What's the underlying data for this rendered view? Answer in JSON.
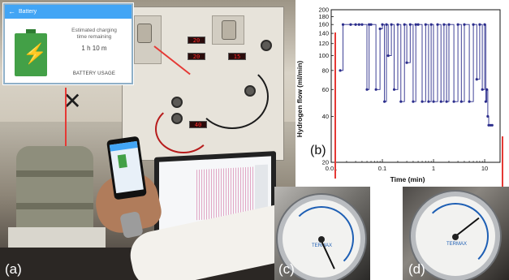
{
  "panel_labels": {
    "a": "(a)",
    "b": "(b)",
    "c": "(c)",
    "d": "(d)"
  },
  "phone_inset": {
    "title": "Battery",
    "estimate_line1": "Estimated charging",
    "estimate_line2": "time remaining",
    "estimate_time": "1 h 10 m",
    "usage": "BATTERY USAGE"
  },
  "rig_displays": [
    "20",
    "20",
    "15",
    "40"
  ],
  "gauge_c": {
    "brand": "TERMAX"
  },
  "gauge_d": {
    "brand": "TERMAX"
  },
  "colors": {
    "series": "#2b2d8c",
    "arrow": "#e53935",
    "inset_bar": "#42a5f5",
    "battery": "#43a047"
  },
  "chart_data": {
    "type": "line",
    "xlabel": "Time (min)",
    "ylabel": "Hydrogen flow (ml/min)",
    "xscale": "log",
    "yscale": "log",
    "xlim": [
      0.01,
      20
    ],
    "ylim": [
      20,
      200
    ],
    "xticks": [
      0.01,
      0.1,
      1,
      10
    ],
    "xtick_labels": [
      "0.01",
      "0.1",
      "1",
      "10"
    ],
    "yticks": [
      20,
      40,
      60,
      80,
      100,
      120,
      140,
      160,
      180,
      200
    ],
    "ytick_labels": [
      "20",
      "40",
      "60",
      "80",
      "100",
      "120",
      "140",
      "160",
      "180",
      "200"
    ],
    "grid": false,
    "series": [
      {
        "x": [
          0.015,
          0.017,
          0.024,
          0.03,
          0.035,
          0.04,
          0.05,
          0.055,
          0.06,
          0.075,
          0.09,
          0.1,
          0.11,
          0.12,
          0.13,
          0.15,
          0.17,
          0.2,
          0.23,
          0.27,
          0.3,
          0.35,
          0.4,
          0.45,
          0.5,
          0.6,
          0.7,
          0.8,
          0.9,
          1.0,
          1.2,
          1.4,
          1.6,
          1.8,
          2.0,
          2.5,
          3.0,
          3.5,
          4.0,
          5.0,
          6.0,
          7.0,
          8.0,
          9.0,
          10.0,
          10.5,
          11.0,
          11.5,
          12.0,
          13.0,
          14.0
        ],
        "y": [
          80,
          160,
          160,
          160,
          160,
          160,
          60,
          160,
          160,
          60,
          150,
          160,
          50,
          160,
          100,
          160,
          60,
          160,
          50,
          160,
          90,
          160,
          50,
          160,
          160,
          50,
          160,
          50,
          160,
          50,
          160,
          50,
          160,
          50,
          160,
          50,
          160,
          50,
          160,
          50,
          160,
          70,
          160,
          60,
          160,
          50,
          60,
          40,
          35,
          35,
          35
        ]
      }
    ]
  }
}
